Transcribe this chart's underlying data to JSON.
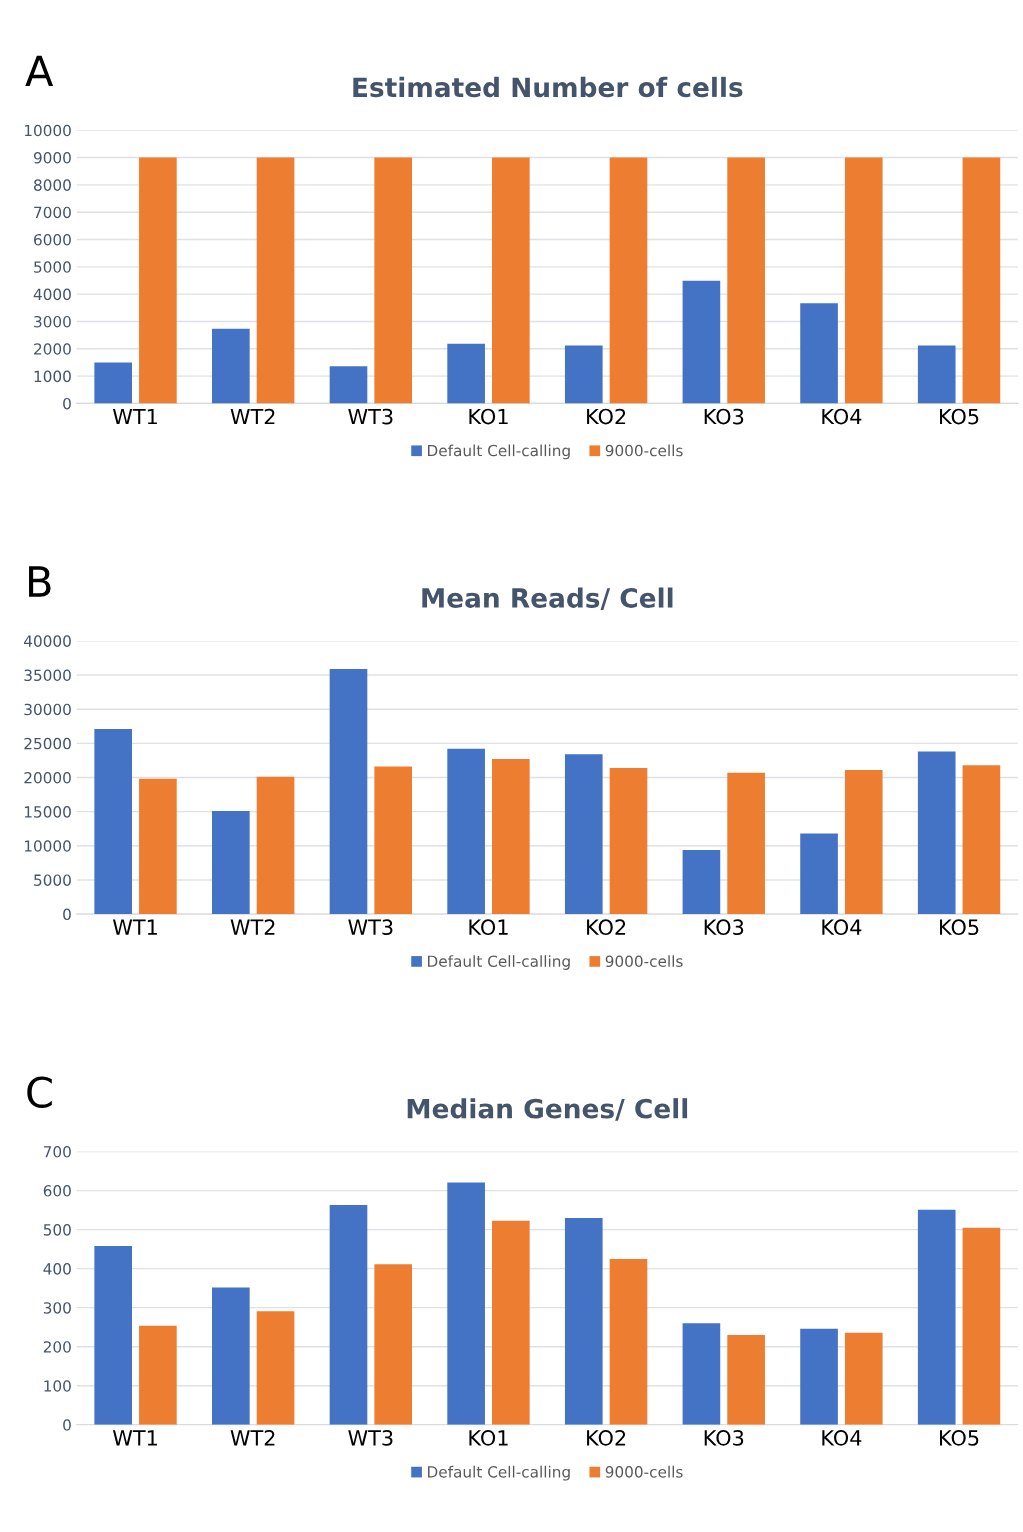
{
  "chart_data": [
    {
      "type": "bar",
      "title": "Estimated Number of cells",
      "annotations": [
        "A"
      ],
      "categories": [
        "WT1",
        "WT2",
        "WT3",
        "KO1",
        "KO2",
        "KO3",
        "KO4",
        "KO5"
      ],
      "series": [
        {
          "name": "Default Cell-calling",
          "color": "#4472c4",
          "values": [
            1500,
            2730,
            1360,
            2180,
            2120,
            4490,
            3670,
            2120
          ]
        },
        {
          "name": "9000-cells",
          "color": "#ed7d31",
          "values": [
            9000,
            9000,
            9000,
            9000,
            9000,
            9000,
            9000,
            9000
          ]
        }
      ],
      "ylim": [
        0,
        10000
      ],
      "yticks": [
        0,
        1000,
        2000,
        3000,
        4000,
        5000,
        6000,
        7000,
        8000,
        9000,
        10000
      ],
      "grid": "y",
      "legend": "bottom"
    },
    {
      "type": "bar",
      "title": "Mean Reads/ Cell",
      "annotations": [
        "B"
      ],
      "categories": [
        "WT1",
        "WT2",
        "WT3",
        "KO1",
        "KO2",
        "KO3",
        "KO4",
        "KO5"
      ],
      "series": [
        {
          "name": "Default Cell-calling",
          "color": "#4472c4",
          "values": [
            27100,
            15100,
            35900,
            24200,
            23400,
            9400,
            11800,
            23800
          ]
        },
        {
          "name": "9000-cells",
          "color": "#ed7d31",
          "values": [
            19800,
            20100,
            21600,
            22700,
            21400,
            20700,
            21100,
            21800
          ]
        }
      ],
      "ylim": [
        0,
        40000
      ],
      "yticks": [
        0,
        5000,
        10000,
        15000,
        20000,
        25000,
        30000,
        35000,
        40000
      ],
      "grid": "y",
      "legend": "bottom"
    },
    {
      "type": "bar",
      "title": "Median Genes/ Cell",
      "annotations": [
        "C"
      ],
      "categories": [
        "WT1",
        "WT2",
        "WT3",
        "KO1",
        "KO2",
        "KO3",
        "KO4",
        "KO5"
      ],
      "series": [
        {
          "name": "Default Cell-calling",
          "color": "#4472c4",
          "values": [
            458,
            352,
            563,
            621,
            530,
            260,
            246,
            551
          ]
        },
        {
          "name": "9000-cells",
          "color": "#ed7d31",
          "values": [
            254,
            291,
            411,
            523,
            425,
            230,
            236,
            505
          ]
        }
      ],
      "ylim": [
        0,
        700
      ],
      "yticks": [
        0,
        100,
        200,
        300,
        400,
        500,
        600,
        700
      ],
      "grid": "y",
      "legend": "bottom"
    }
  ]
}
